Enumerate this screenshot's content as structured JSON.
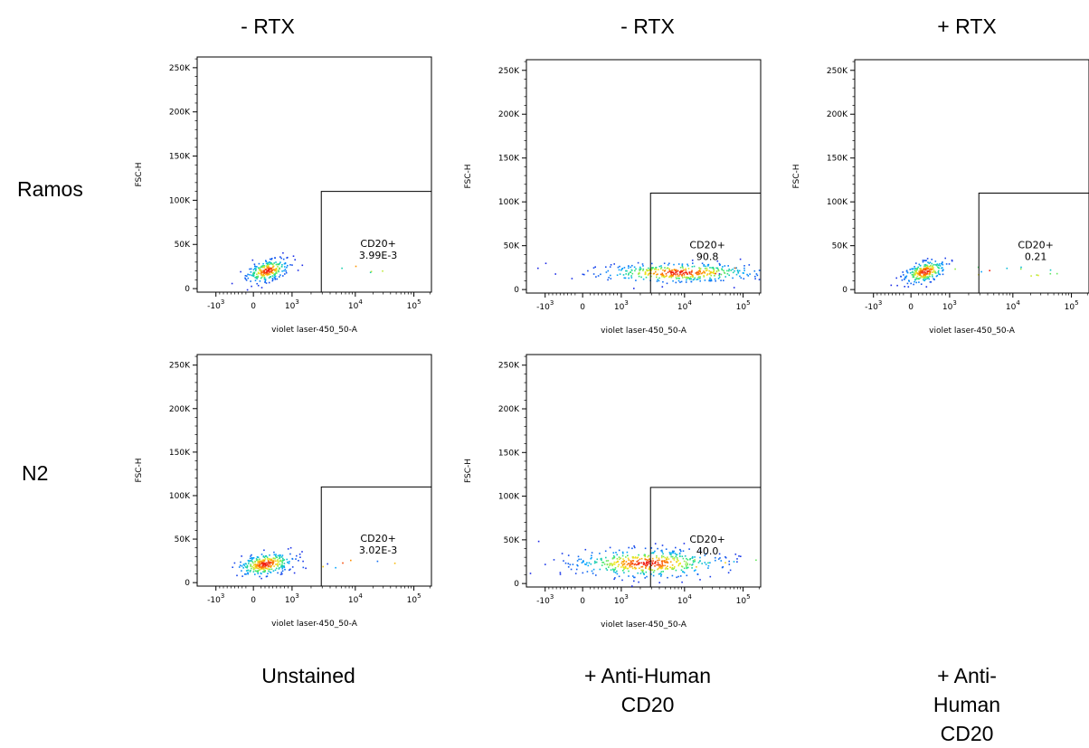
{
  "columns": [
    {
      "label": "- RTX"
    },
    {
      "label": "- RTX"
    },
    {
      "label": "+ RTX"
    }
  ],
  "rows": [
    {
      "label": "Ramos"
    },
    {
      "label": "N2"
    }
  ],
  "footers": [
    {
      "lines": [
        "Unstained"
      ]
    },
    {
      "lines": [
        "+ Anti-Human",
        "CD20"
      ]
    },
    {
      "lines": [
        "+ Anti-Human",
        "CD20"
      ]
    }
  ],
  "chart_data": [
    {
      "type": "scatter",
      "id": "ramos-unstained",
      "xlabel": "violet laser-450_50-A",
      "ylabel": "FSC-H",
      "y_ticks": [
        "0",
        "50K",
        "100K",
        "150K",
        "200K",
        "250K"
      ],
      "x_ticks": [
        "-10^3",
        "0",
        "10^3",
        "10^4",
        "10^5"
      ],
      "gate": {
        "name": "CD20+",
        "value": "3.99E-3"
      },
      "population": {
        "x_center": 350,
        "y_center": 21000,
        "shape": "compact"
      }
    },
    {
      "type": "scatter",
      "id": "ramos-anti-cd20-no-rtx",
      "xlabel": "violet laser-450_50-A",
      "ylabel": "FSC-H",
      "y_ticks": [
        "0",
        "50K",
        "100K",
        "150K",
        "200K",
        "250K"
      ],
      "x_ticks": [
        "-10^3",
        "0",
        "10^3",
        "10^4",
        "10^5"
      ],
      "gate": {
        "name": "CD20+",
        "value": "90.8"
      },
      "population": {
        "x_center": 8000,
        "y_center": 20000,
        "shape": "wide"
      }
    },
    {
      "type": "scatter",
      "id": "ramos-anti-cd20-rtx",
      "xlabel": "violet laser-450_50-A",
      "ylabel": "FSC-H",
      "y_ticks": [
        "0",
        "50K",
        "100K",
        "150K",
        "200K",
        "250K"
      ],
      "x_ticks": [
        "-10^3",
        "0",
        "10^3",
        "10^4",
        "10^5"
      ],
      "gate": {
        "name": "CD20+",
        "value": "0.21"
      },
      "population": {
        "x_center": 350,
        "y_center": 21000,
        "shape": "compact"
      }
    },
    {
      "type": "scatter",
      "id": "n2-unstained",
      "xlabel": "violet laser-450_50-A",
      "ylabel": "FSC-H",
      "y_ticks": [
        "0",
        "50K",
        "100K",
        "150K",
        "200K",
        "250K"
      ],
      "x_ticks": [
        "-10^3",
        "0",
        "10^3",
        "10^4",
        "10^5"
      ],
      "gate": {
        "name": "CD20+",
        "value": "3.02E-3"
      },
      "population": {
        "x_center": 300,
        "y_center": 22000,
        "shape": "medium"
      }
    },
    {
      "type": "scatter",
      "id": "n2-anti-cd20-no-rtx",
      "xlabel": "violet laser-450_50-A",
      "ylabel": "FSC-H",
      "y_ticks": [
        "0",
        "50K",
        "100K",
        "150K",
        "200K",
        "250K"
      ],
      "x_ticks": [
        "-10^3",
        "0",
        "10^3",
        "10^4",
        "10^5"
      ],
      "gate": {
        "name": "CD20+",
        "value": "40.0"
      },
      "population": {
        "x_center": 2500,
        "y_center": 24000,
        "shape": "broad"
      }
    }
  ]
}
